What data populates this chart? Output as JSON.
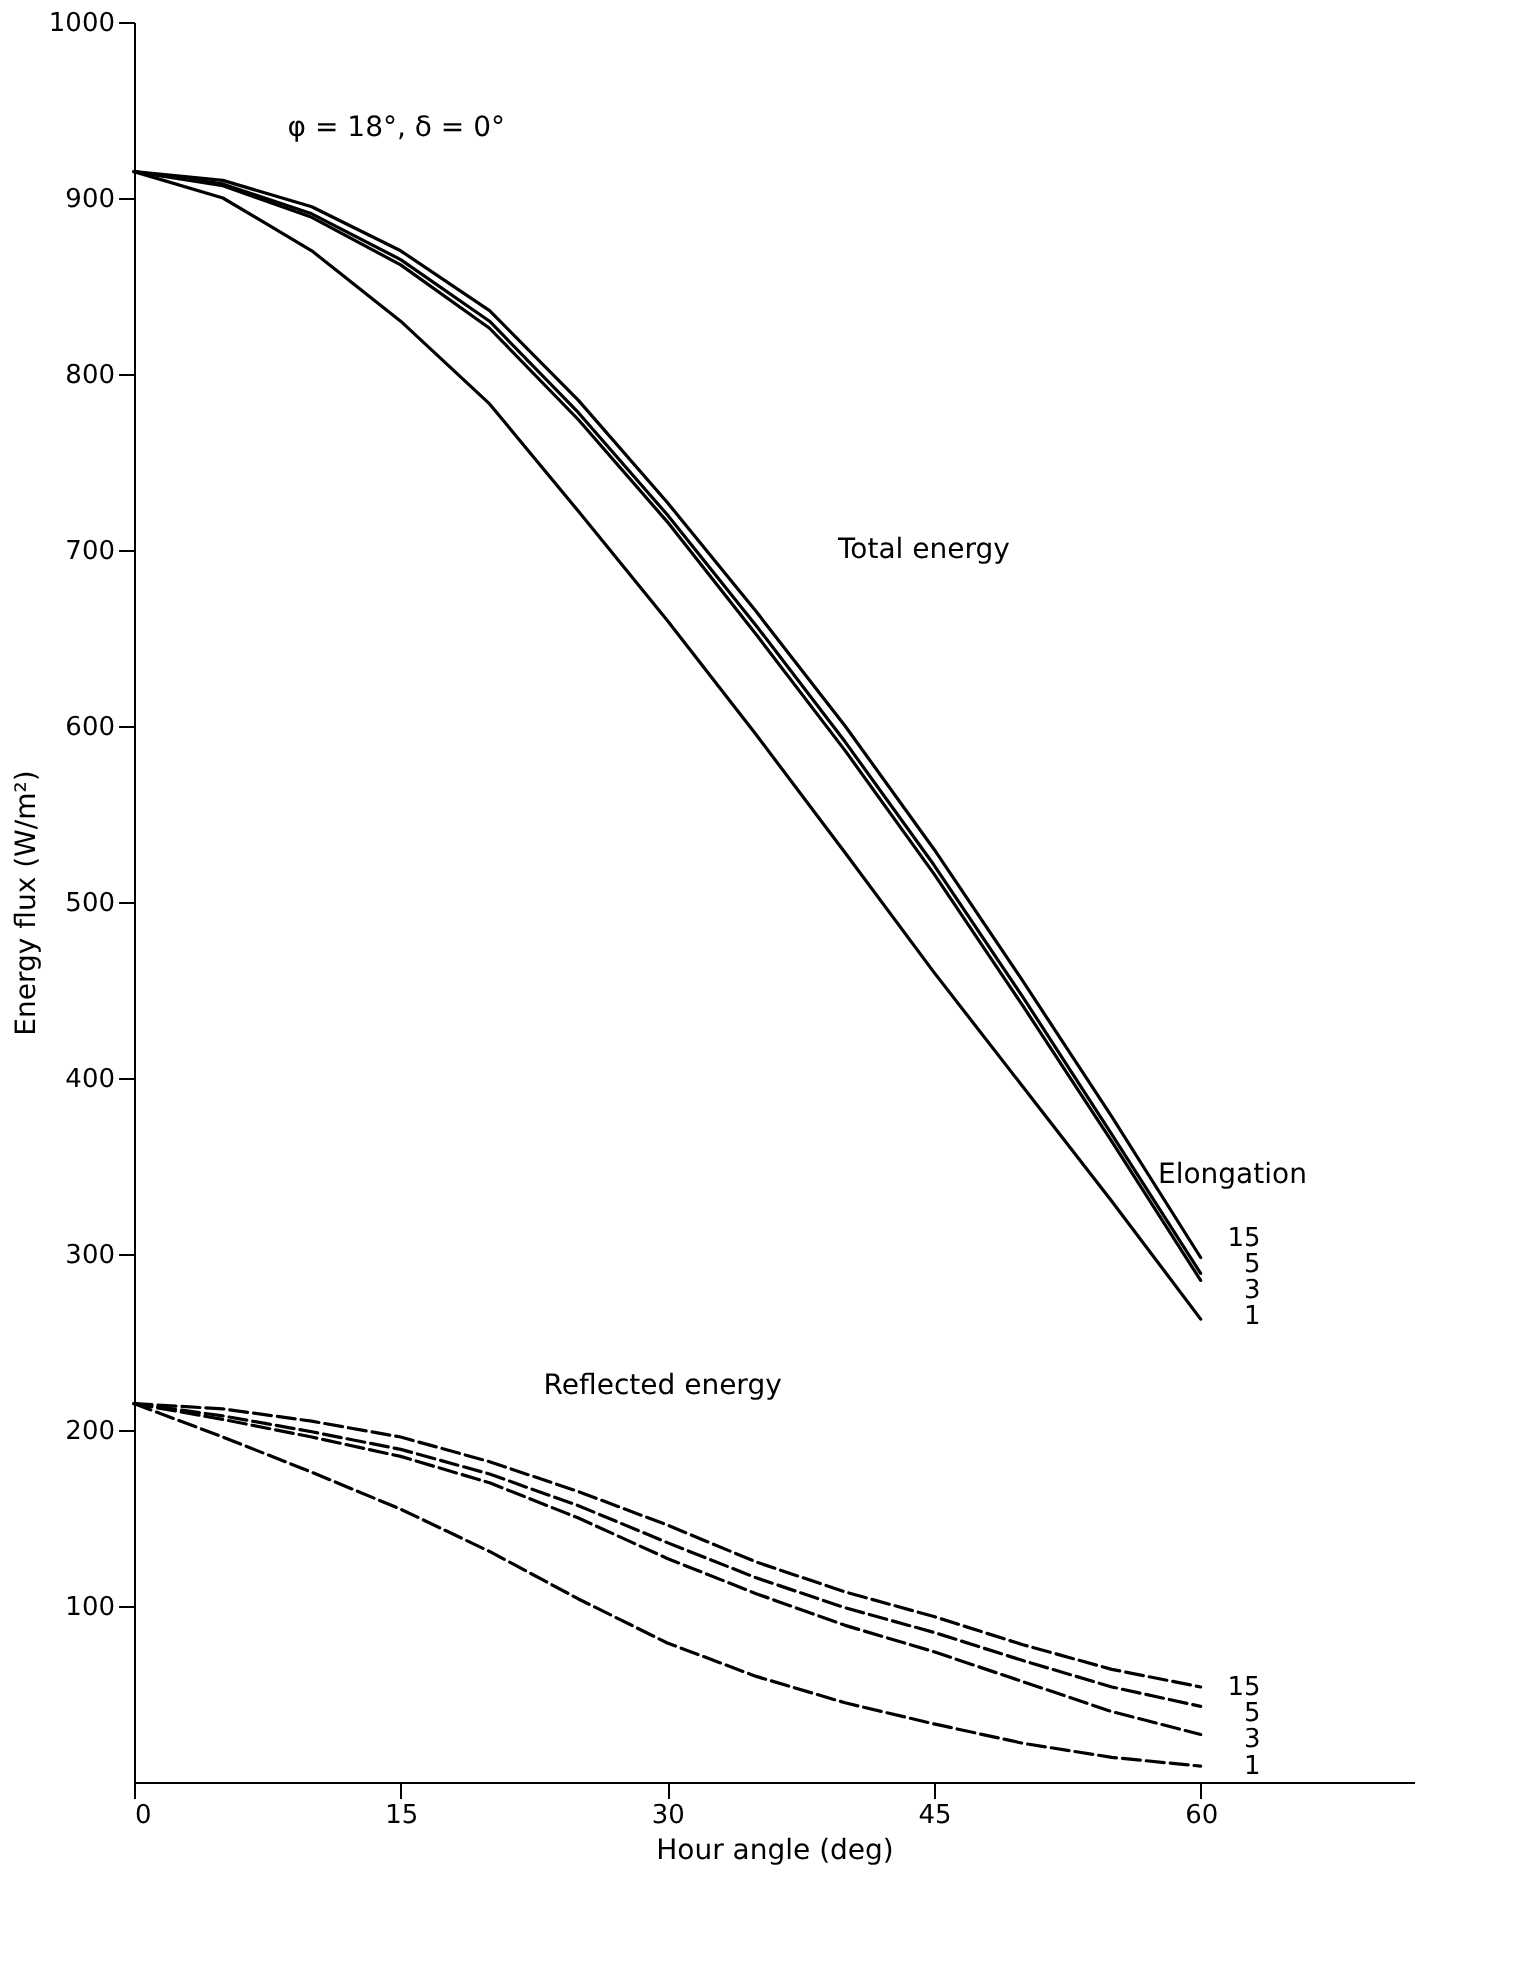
{
  "chart_data": {
    "type": "line",
    "xlabel": "Hour angle (deg)",
    "ylabel": "Energy flux (W/m²)",
    "xlim": [
      0,
      72
    ],
    "xticks": [
      0,
      15,
      30,
      45,
      60
    ],
    "ylim": [
      0,
      1000
    ],
    "yticks": [
      100,
      200,
      300,
      400,
      500,
      600,
      700,
      800,
      900,
      1000
    ],
    "grid": false,
    "marker": "none",
    "x": [
      0,
      5,
      10,
      15,
      20,
      25,
      30,
      35,
      40,
      45,
      50,
      55,
      60
    ],
    "annotations": [
      "φ = 18°, δ = 0°",
      "Total energy",
      "Elongation",
      "Reflected energy"
    ],
    "series": [
      {
        "name": "15",
        "color": "#000000",
        "line_style": "solid",
        "values": [
          915,
          910,
          895,
          870,
          836,
          785,
          727,
          665,
          600,
          530,
          455,
          378,
          298
        ]
      },
      {
        "name": "5",
        "color": "#000000",
        "line_style": "solid",
        "values": [
          915,
          908,
          891,
          865,
          830,
          778,
          720,
          657,
          591,
          521,
          446,
          368,
          289
        ]
      },
      {
        "name": "3",
        "color": "#000000",
        "line_style": "solid",
        "values": [
          915,
          907,
          889,
          862,
          826,
          774,
          716,
          652,
          586,
          516,
          441,
          364,
          285
        ]
      },
      {
        "name": "1",
        "color": "#000000",
        "line_style": "solid",
        "values": [
          915,
          900,
          870,
          830,
          783,
          722,
          660,
          595,
          528,
          460,
          395,
          330,
          263
        ]
      },
      {
        "name": "15",
        "color": "#000000",
        "line_style": "dashed",
        "values": [
          215,
          212,
          205,
          196,
          182,
          165,
          146,
          125,
          108,
          94,
          78,
          64,
          54
        ]
      },
      {
        "name": "5",
        "color": "#000000",
        "line_style": "dashed",
        "values": [
          215,
          208,
          199,
          189,
          175,
          157,
          136,
          116,
          99,
          85,
          69,
          54,
          43
        ]
      },
      {
        "name": "3",
        "color": "#000000",
        "line_style": "dashed",
        "values": [
          215,
          206,
          196,
          185,
          170,
          150,
          127,
          107,
          89,
          74,
          57,
          40,
          27
        ]
      },
      {
        "name": "1",
        "color": "#000000",
        "line_style": "dashed",
        "values": [
          215,
          196,
          176,
          155,
          131,
          104,
          79,
          60,
          45,
          33,
          22,
          14,
          9
        ]
      }
    ]
  }
}
